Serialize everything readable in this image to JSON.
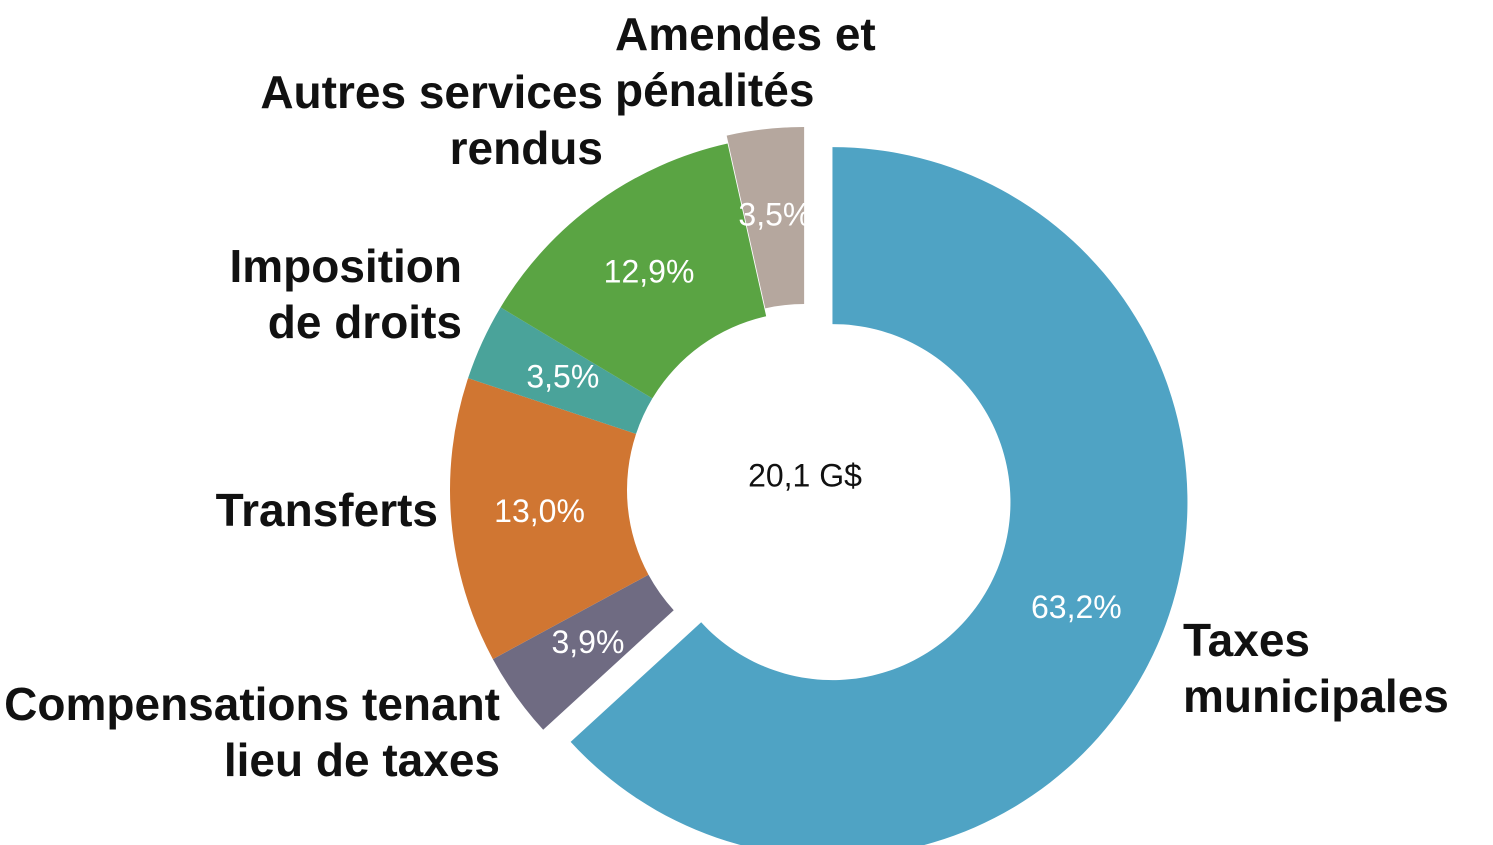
{
  "chart_data": {
    "type": "donut",
    "center_label": "20,1 G$",
    "categories": [
      "Taxes municipales",
      "Compensations tenant lieu de taxes",
      "Transferts",
      "Imposition de droits",
      "Autres services rendus",
      "Amendes et pénalités"
    ],
    "values": [
      63.2,
      3.9,
      13.0,
      3.5,
      12.9,
      3.5
    ],
    "value_labels": [
      "63,2%",
      "3,9%",
      "13,0%",
      "3,5%",
      "12,9%",
      "3,5%"
    ],
    "colors": [
      "#4fa3c4",
      "#6f6b82",
      "#d07632",
      "#4aa39a",
      "#5aa443",
      "#b5a79e"
    ]
  }
}
